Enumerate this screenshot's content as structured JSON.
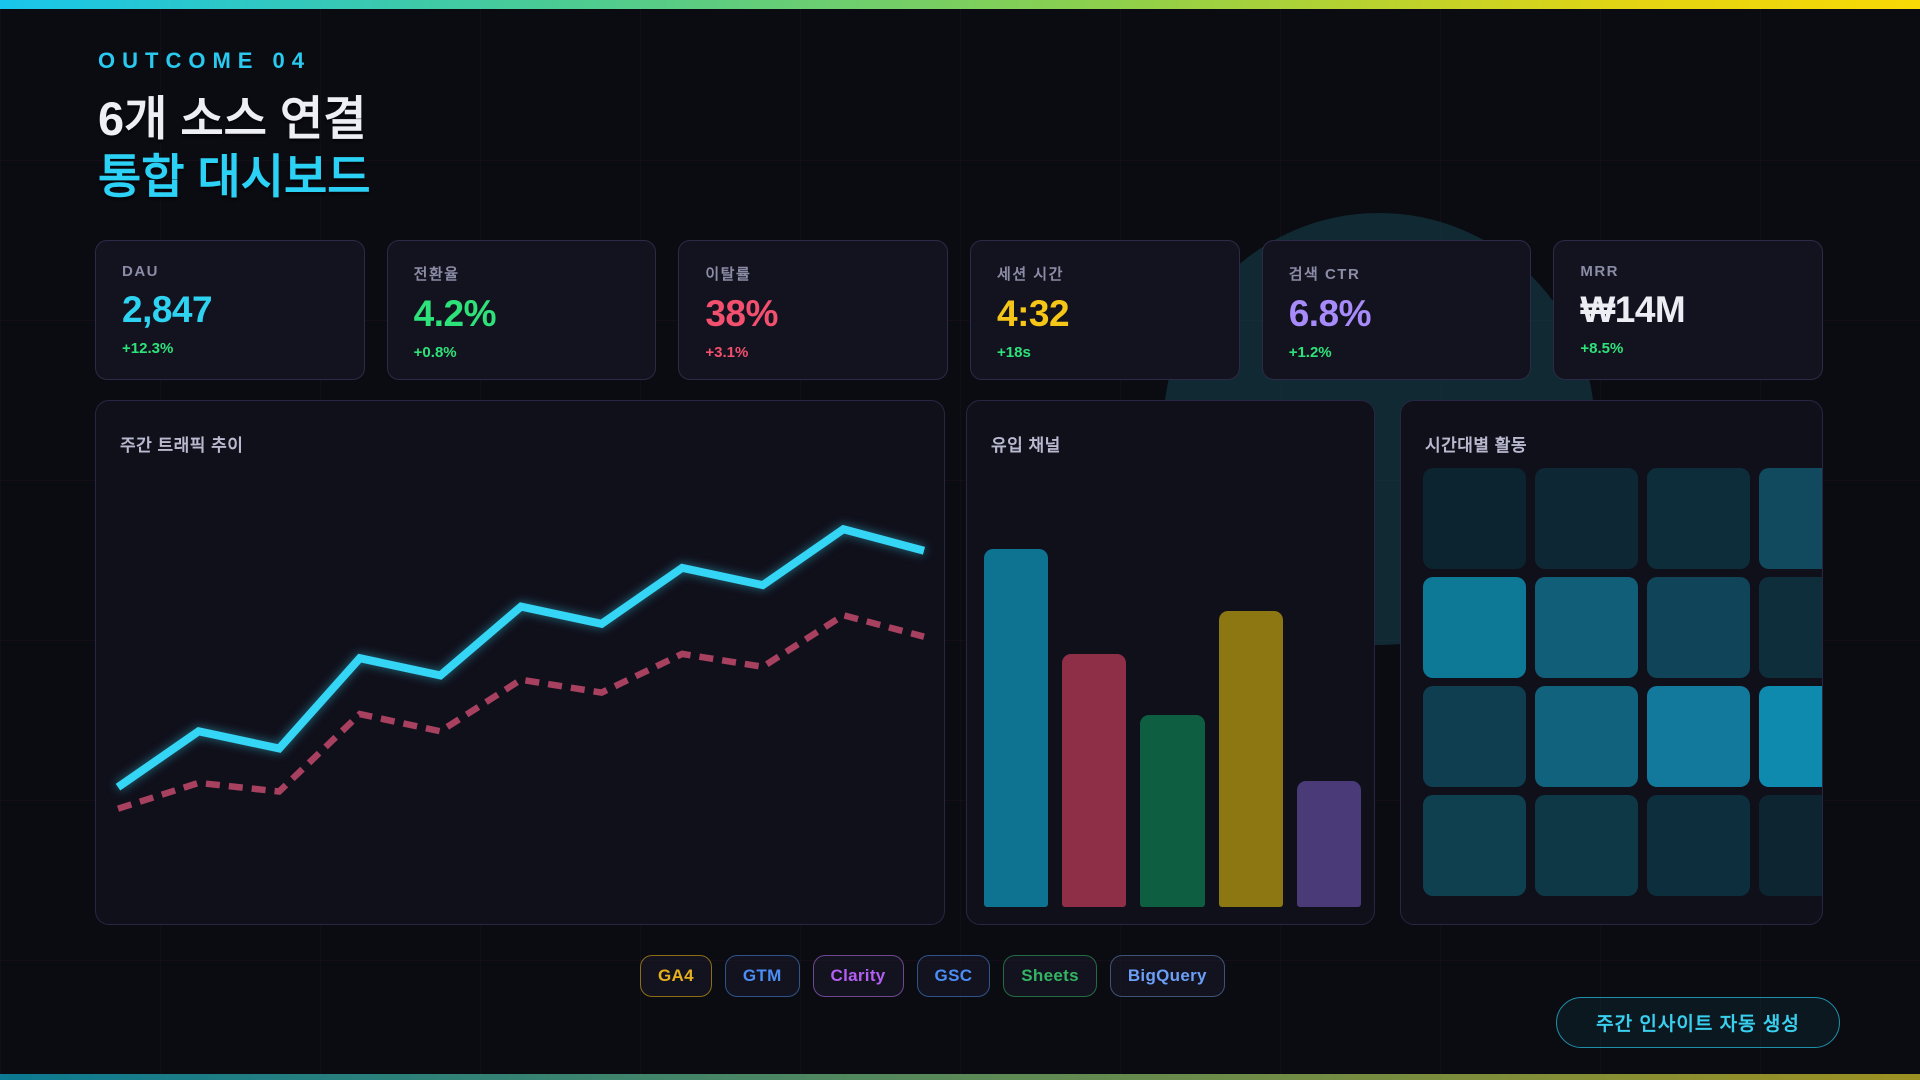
{
  "header": {
    "kicker": "OUTCOME 04",
    "title_line1": "6개 소스 연결",
    "title_line2": "통합 대시보드"
  },
  "kpi_cards": [
    {
      "label": "DAU",
      "value": "2,847",
      "delta": "+12.3%",
      "value_color": "#2fd3f2",
      "delta_color": "#2ee27a"
    },
    {
      "label": "전환율",
      "value": "4.2%",
      "delta": "+0.8%",
      "value_color": "#2ee27a",
      "delta_color": "#2ee27a"
    },
    {
      "label": "이탈률",
      "value": "38%",
      "delta": "+3.1%",
      "value_color": "#f2506e",
      "delta_color": "#f2506e"
    },
    {
      "label": "세션 시간",
      "value": "4:32",
      "delta": "+18s",
      "value_color": "#f5c617",
      "delta_color": "#2ee27a"
    },
    {
      "label": "검색 CTR",
      "value": "6.8%",
      "delta": "+1.2%",
      "value_color": "#a78bfa",
      "delta_color": "#2ee27a"
    },
    {
      "label": "MRR",
      "value": "₩14M",
      "delta": "+8.5%",
      "value_color": "#eceef4",
      "delta_color": "#2ee27a"
    }
  ],
  "chart_data": [
    {
      "type": "line",
      "title": "주간 트래픽 추이",
      "x": [
        1,
        2,
        3,
        4,
        5,
        6,
        7,
        8,
        9,
        10,
        11
      ],
      "series": [
        {
          "name": "solid-cyan",
          "color": "#35d6f5",
          "style": "solid",
          "values": [
            26,
            39,
            35,
            56,
            52,
            68,
            64,
            77,
            73,
            86,
            81
          ]
        },
        {
          "name": "dashed-rose",
          "color": "#a84060",
          "style": "dashed",
          "values": [
            21,
            27,
            25,
            43,
            39,
            51,
            48,
            57,
            54,
            66,
            61
          ]
        }
      ],
      "ylim": [
        0,
        100
      ],
      "grid": false,
      "legend": "none"
    },
    {
      "type": "bar",
      "title": "유입 채널",
      "values": [
        82,
        58,
        44,
        68,
        29
      ],
      "colors": [
        "#0d7390",
        "#8e2f47",
        "#0e5f41",
        "#8c7712",
        "#4a3a78"
      ],
      "ylim": [
        0,
        100
      ],
      "grid": false
    },
    {
      "type": "heatmap",
      "title": "시간대별 활동",
      "rows": 4,
      "cols": 4,
      "cells": [
        [
          "#0c2430",
          "#0d2834",
          "#0e2d3a",
          "#114a5e"
        ],
        [
          "#0e7897",
          "#115e78",
          "#104459",
          "#0e2e3c"
        ],
        [
          "#0f3e50",
          "#11627d",
          "#12789c",
          "#0d8aad"
        ],
        [
          "#0f404f",
          "#0e3845",
          "#0d2e3c",
          "#0c2531"
        ]
      ]
    }
  ],
  "sources": [
    {
      "label": "GA4",
      "color": "#e9b01e",
      "border": "#8f6d14"
    },
    {
      "label": "GTM",
      "color": "#4b8df5",
      "border": "#2f5489"
    },
    {
      "label": "Clarity",
      "color": "#b35ff2",
      "border": "#6f4795"
    },
    {
      "label": "GSC",
      "color": "#4b8df5",
      "border": "#2f5489"
    },
    {
      "label": "Sheets",
      "color": "#34b564",
      "border": "#256b41"
    },
    {
      "label": "BigQuery",
      "color": "#6c9ff7",
      "border": "#3f5377"
    }
  ],
  "cta": {
    "label": "주간 인사이트 자동 생성",
    "color": "#39cfee",
    "border": "#1f90aa"
  },
  "theme": {
    "background": "#0b0b12",
    "card_bg": "#13131f",
    "panel_bg": "#10101b",
    "card_border": "#2b2b47",
    "accent": "#2bd2f6",
    "top_gradient": [
      "#18c5ec",
      "#49cb96",
      "#8ed04b",
      "#f8d905"
    ],
    "bottom_gradient": [
      "#0c7a92",
      "#5d8a55",
      "#9c9022"
    ]
  }
}
